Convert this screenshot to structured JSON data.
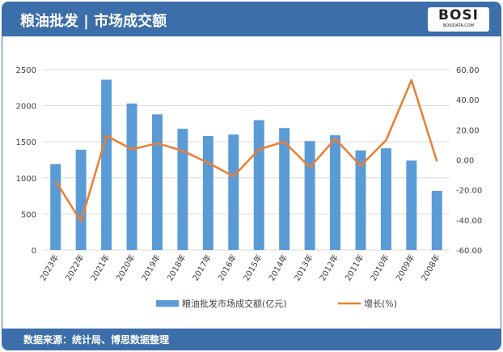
{
  "header": {
    "title": "粮油批发 | 市场成交额",
    "logo": "BOSI",
    "logo_sub": "BOSIDATA.COM"
  },
  "footer": {
    "source": "数据来源：统计局、博思数据整理"
  },
  "colors": {
    "bar": "#5b9bd5",
    "line": "#ed7d31",
    "header": "#3c6ea9"
  },
  "chart_data": {
    "type": "bar+line",
    "categories": [
      "2023年",
      "2022年",
      "2021年",
      "2020年",
      "2019年",
      "2018年",
      "2017年",
      "2016年",
      "2015年",
      "2014年",
      "2013年",
      "2012年",
      "2011年",
      "2010年",
      "2009年",
      "2008年"
    ],
    "series": [
      {
        "name": "粮油批发市场成交额(亿元)",
        "type": "bar",
        "axis": "left",
        "values": [
          1190,
          1390,
          2360,
          2030,
          1880,
          1680,
          1580,
          1600,
          1800,
          1690,
          1510,
          1590,
          1380,
          1410,
          1240,
          820
        ]
      },
      {
        "name": "增长(%)",
        "type": "line",
        "axis": "right",
        "values": [
          -14,
          -41,
          16,
          7,
          11,
          6,
          -2,
          -11,
          7,
          12,
          -5,
          14,
          -4,
          13,
          53,
          -1
        ]
      }
    ],
    "y_left": {
      "range": [
        0,
        2500
      ],
      "ticks": [
        "0",
        "500",
        "1000",
        "1500",
        "2000",
        "2500"
      ]
    },
    "y_right": {
      "range": [
        -60,
        60
      ],
      "ticks": [
        "-60.00",
        "-40.00",
        "-20.00",
        "0.00",
        "20.00",
        "40.00",
        "60.00"
      ]
    },
    "grid": true,
    "legend": "bottom"
  }
}
